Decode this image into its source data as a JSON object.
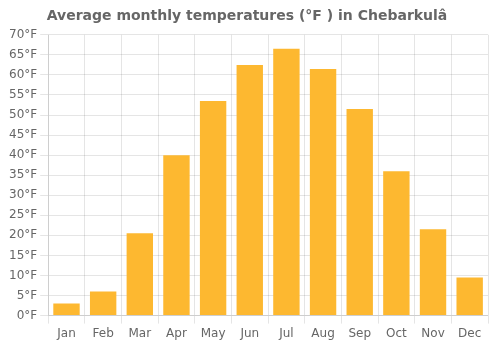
{
  "chart_data": {
    "type": "bar",
    "title": "Average monthly temperatures (°F ) in Chebarkulâ",
    "categories": [
      "Jan",
      "Feb",
      "Mar",
      "Apr",
      "May",
      "Jun",
      "Jul",
      "Aug",
      "Sep",
      "Oct",
      "Nov",
      "Dec"
    ],
    "values": [
      3,
      6,
      20.5,
      40,
      53.5,
      62.5,
      66.5,
      61.5,
      51.5,
      36,
      21.5,
      9.5
    ],
    "color": "#FDB830",
    "ylim": [
      0,
      70
    ],
    "yticks": [
      {
        "value": 0,
        "label": "0°F"
      },
      {
        "value": 5,
        "label": "5°F"
      },
      {
        "value": 10,
        "label": "10°F"
      },
      {
        "value": 15,
        "label": "15°F"
      },
      {
        "value": 20,
        "label": "20°F"
      },
      {
        "value": 25,
        "label": "25°F"
      },
      {
        "value": 30,
        "label": "30°F"
      },
      {
        "value": 35,
        "label": "35°F"
      },
      {
        "value": 40,
        "label": "40°F"
      },
      {
        "value": 45,
        "label": "45°F"
      },
      {
        "value": 50,
        "label": "50°F"
      },
      {
        "value": 55,
        "label": "55°F"
      },
      {
        "value": 60,
        "label": "60°F"
      },
      {
        "value": 65,
        "label": "65°F"
      },
      {
        "value": 70,
        "label": "70°F"
      }
    ],
    "grid": true
  }
}
